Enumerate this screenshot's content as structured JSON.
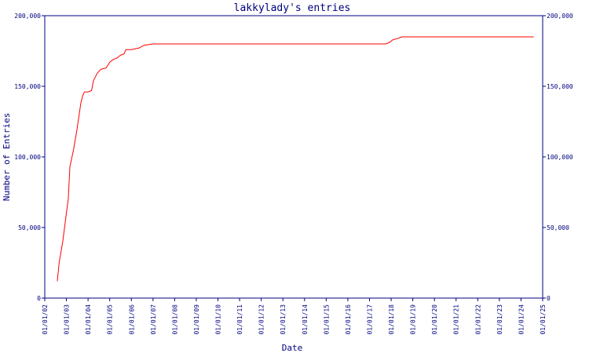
{
  "chart_data": {
    "type": "line",
    "title": "lakkylady's entries",
    "xlabel": "Date",
    "ylabel": "Number of Entries",
    "x_axis_type": "date",
    "xlim": [
      "2002-01-01",
      "2025-01-01"
    ],
    "ylim": [
      0,
      200000
    ],
    "grid": false,
    "legend": "none",
    "line_color": "#ff0000",
    "axis_color": "#000080",
    "x_tick_labels": [
      "01/01/02",
      "01/01/03",
      "01/01/04",
      "01/01/05",
      "01/01/06",
      "01/01/07",
      "01/01/08",
      "01/01/09",
      "01/01/10",
      "01/01/11",
      "01/01/12",
      "01/01/13",
      "01/01/14",
      "01/01/15",
      "01/01/16",
      "01/01/17",
      "01/01/18",
      "01/01/19",
      "01/01/20",
      "01/01/21",
      "01/01/22",
      "01/01/23",
      "01/01/24",
      "01/01/25"
    ],
    "y_tick_labels": [
      "0",
      "50,000",
      "100,000",
      "150,000",
      "200,000"
    ],
    "y_tick_labels_right": [
      "0",
      "50,000",
      "100,000",
      "150,000",
      "200,000"
    ],
    "series": [
      {
        "points": [
          [
            "2002-08-01",
            12000
          ],
          [
            "2002-09-01",
            25000
          ],
          [
            "2002-11-01",
            40000
          ],
          [
            "2003-01-01",
            60000
          ],
          [
            "2003-02-01",
            70000
          ],
          [
            "2003-03-01",
            93000
          ],
          [
            "2003-05-01",
            105000
          ],
          [
            "2003-07-01",
            120000
          ],
          [
            "2003-09-01",
            138000
          ],
          [
            "2003-10-01",
            143000
          ],
          [
            "2003-11-01",
            146000
          ],
          [
            "2004-01-01",
            146000
          ],
          [
            "2004-03-01",
            147000
          ],
          [
            "2004-04-01",
            154000
          ],
          [
            "2004-06-01",
            159000
          ],
          [
            "2004-08-01",
            162000
          ],
          [
            "2004-11-01",
            163000
          ],
          [
            "2005-01-01",
            167000
          ],
          [
            "2005-03-01",
            169000
          ],
          [
            "2005-05-01",
            170000
          ],
          [
            "2005-07-01",
            172000
          ],
          [
            "2005-09-01",
            173000
          ],
          [
            "2005-10-01",
            176000
          ],
          [
            "2006-01-01",
            176000
          ],
          [
            "2006-05-01",
            177000
          ],
          [
            "2006-08-01",
            179000
          ],
          [
            "2007-01-01",
            180000
          ],
          [
            "2008-01-01",
            180000
          ],
          [
            "2010-01-01",
            180000
          ],
          [
            "2012-01-01",
            180000
          ],
          [
            "2014-01-01",
            180000
          ],
          [
            "2016-01-01",
            180000
          ],
          [
            "2017-10-01",
            180000
          ],
          [
            "2017-12-01",
            181000
          ],
          [
            "2018-02-01",
            183000
          ],
          [
            "2018-05-01",
            184000
          ],
          [
            "2018-07-01",
            185000
          ],
          [
            "2020-01-01",
            185000
          ],
          [
            "2022-01-01",
            185000
          ],
          [
            "2024-08-01",
            185000
          ]
        ]
      }
    ]
  }
}
